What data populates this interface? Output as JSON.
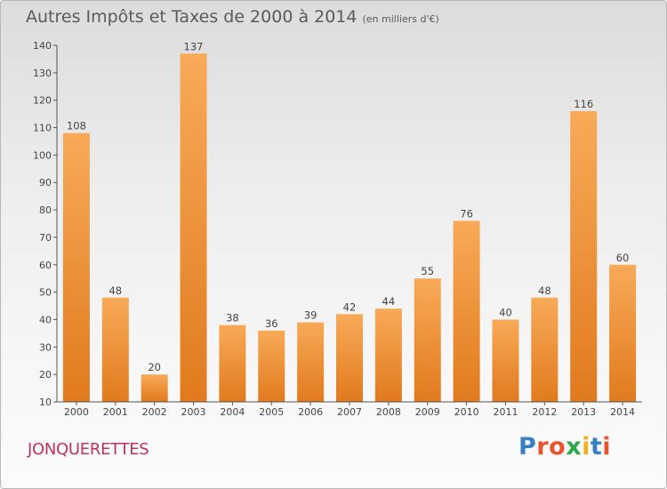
{
  "header": {
    "title": "Autres Impôts et Taxes de 2000 à 2014",
    "unit": "(en milliers d'€)"
  },
  "footer": {
    "town": "JONQUERETTES",
    "logo": "Proxiti",
    "logo_colors": [
      "#3a7fc4",
      "#e8542e",
      "#e8542e",
      "#2aa84a",
      "#f0b020",
      "#3a7fc4",
      "#e8542e"
    ]
  },
  "colors": {
    "bar_light": "#f8aa58",
    "bar_dark": "#e17a1e",
    "axis": "#555555",
    "title": "#5a5a5a",
    "town": "#c0335a"
  },
  "chart_data": {
    "type": "bar",
    "title": "Autres Impôts et Taxes de 2000 à 2014",
    "xlabel": "",
    "ylabel": "",
    "categories": [
      "2000",
      "2001",
      "2002",
      "2003",
      "2004",
      "2005",
      "2006",
      "2007",
      "2008",
      "2009",
      "2010",
      "2011",
      "2012",
      "2013",
      "2014"
    ],
    "values": [
      108,
      48,
      20,
      137,
      38,
      36,
      39,
      42,
      44,
      55,
      76,
      40,
      48,
      116,
      60
    ],
    "ylim": [
      10,
      140
    ],
    "yticks": [
      10,
      20,
      30,
      40,
      50,
      60,
      70,
      80,
      90,
      100,
      110,
      120,
      130,
      140
    ],
    "grid": false,
    "legend": "none"
  }
}
